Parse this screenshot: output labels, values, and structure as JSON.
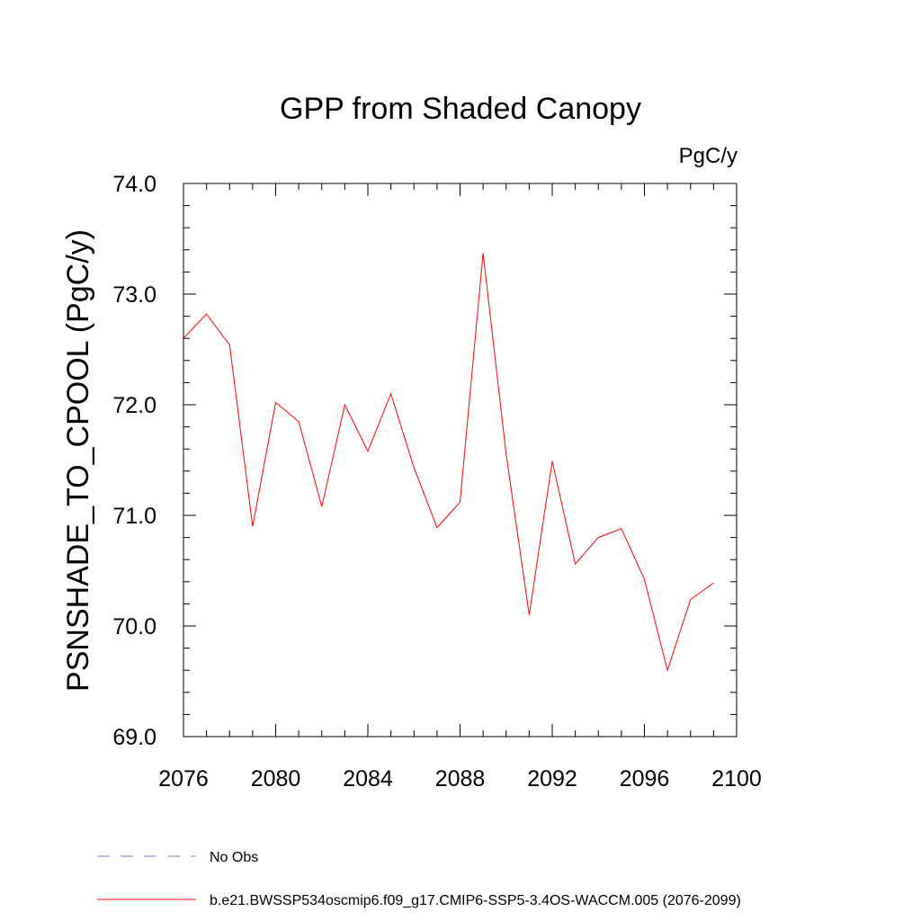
{
  "chart_data": {
    "type": "line",
    "title": "GPP from Shaded Canopy",
    "units_label": "PgC/y",
    "ylabel": "PSNSHADE_TO_CPOOL  (PgC/y)",
    "xlabel": "",
    "xlim": [
      2076,
      2100
    ],
    "ylim": [
      69.0,
      74.0
    ],
    "x_ticks": [
      2076,
      2080,
      2084,
      2088,
      2092,
      2096,
      2100
    ],
    "x_tick_labels": [
      "2076",
      "2080",
      "2084",
      "2088",
      "2092",
      "2096",
      "2100"
    ],
    "x_minor_step": 1,
    "y_ticks": [
      69.0,
      70.0,
      71.0,
      72.0,
      73.0,
      74.0
    ],
    "y_tick_labels": [
      "69.0",
      "70.0",
      "71.0",
      "72.0",
      "73.0",
      "74.0"
    ],
    "y_minor_step": 0.2,
    "grid": false,
    "series": [
      {
        "name": "b.e21.BWSSP534oscmip6.f09_g17.CMIP6-SSP5-3.4OS-WACCM.005 (2076-2099)",
        "color": "#ff0000",
        "dash": "solid",
        "x": [
          2076,
          2077,
          2078,
          2079,
          2080,
          2081,
          2082,
          2083,
          2084,
          2085,
          2086,
          2087,
          2088,
          2089,
          2090,
          2091,
          2092,
          2093,
          2094,
          2095,
          2096,
          2097,
          2098,
          2099
        ],
        "values": [
          72.6,
          72.82,
          72.54,
          70.9,
          72.02,
          71.85,
          71.08,
          72.0,
          71.58,
          72.1,
          71.43,
          70.89,
          71.12,
          73.37,
          71.55,
          70.1,
          71.49,
          70.56,
          70.8,
          70.88,
          70.42,
          69.6,
          70.24,
          70.39
        ]
      }
    ],
    "legend": [
      {
        "label": "No Obs",
        "color": "#7b7bc8",
        "dash": "dashed"
      },
      {
        "label": "b.e21.BWSSP534oscmip6.f09_g17.CMIP6-SSP5-3.4OS-WACCM.005 (2076-2099)",
        "color": "#ff0000",
        "dash": "solid"
      }
    ]
  }
}
